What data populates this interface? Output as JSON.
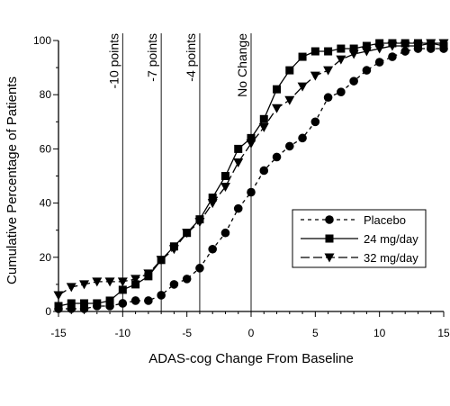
{
  "chart_data": {
    "type": "line",
    "title": "",
    "xlabel": "ADAS-cog Change From Baseline",
    "ylabel": "Cumulative Percentage of Patients",
    "xlim": [
      -15,
      15
    ],
    "ylim": [
      0,
      100
    ],
    "xticks": [
      -15,
      -10,
      -5,
      0,
      5,
      10,
      15
    ],
    "yticks": [
      0,
      20,
      40,
      60,
      80,
      100
    ],
    "grid": false,
    "legend": "right",
    "reference_lines": [
      {
        "x": -10,
        "label": "-10 points"
      },
      {
        "x": -7,
        "label": "-7 points"
      },
      {
        "x": -4,
        "label": "-4 points"
      },
      {
        "x": 0,
        "label": "No Change"
      }
    ],
    "series": [
      {
        "name": "Placebo",
        "marker": "circle",
        "dash": "4,4",
        "x": [
          -15,
          -14,
          -13,
          -12,
          -11,
          -10,
          -9,
          -8,
          -7,
          -6,
          -5,
          -4,
          -3,
          -2,
          -1,
          0,
          1,
          2,
          3,
          4,
          5,
          6,
          7,
          8,
          9,
          10,
          11,
          12,
          13,
          14,
          15
        ],
        "y": [
          1,
          1,
          1,
          2,
          2,
          3,
          4,
          4,
          6,
          10,
          12,
          16,
          23,
          29,
          38,
          44,
          52,
          57,
          61,
          64,
          70,
          79,
          81,
          85,
          89,
          92,
          94,
          96,
          97,
          97,
          97
        ]
      },
      {
        "name": "24 mg/day",
        "marker": "square",
        "dash": "",
        "x": [
          -15,
          -14,
          -13,
          -12,
          -11,
          -10,
          -9,
          -8,
          -7,
          -6,
          -5,
          -4,
          -3,
          -2,
          -1,
          0,
          1,
          2,
          3,
          4,
          5,
          6,
          7,
          8,
          9,
          10,
          11,
          12,
          13,
          14,
          15
        ],
        "y": [
          2,
          3,
          3,
          3,
          4,
          8,
          10,
          13,
          19,
          24,
          29,
          34,
          42,
          50,
          60,
          64,
          71,
          82,
          89,
          94,
          96,
          96,
          97,
          97,
          98,
          99,
          99,
          99,
          99,
          99,
          98
        ]
      },
      {
        "name": "32 mg/day",
        "marker": "triangle",
        "dash": "10,4",
        "x": [
          -15,
          -14,
          -13,
          -12,
          -11,
          -10,
          -9,
          -8,
          -7,
          -6,
          -5,
          -4,
          -3,
          -2,
          -1,
          0,
          1,
          2,
          3,
          4,
          5,
          6,
          7,
          8,
          9,
          10,
          11,
          12,
          13,
          14,
          15
        ],
        "y": [
          6,
          9,
          10,
          11,
          11,
          11,
          12,
          14,
          19,
          23,
          29,
          33,
          40,
          46,
          55,
          62,
          68,
          75,
          78,
          83,
          87,
          89,
          93,
          95,
          96,
          97,
          98,
          98,
          98,
          99,
          99
        ]
      }
    ]
  }
}
